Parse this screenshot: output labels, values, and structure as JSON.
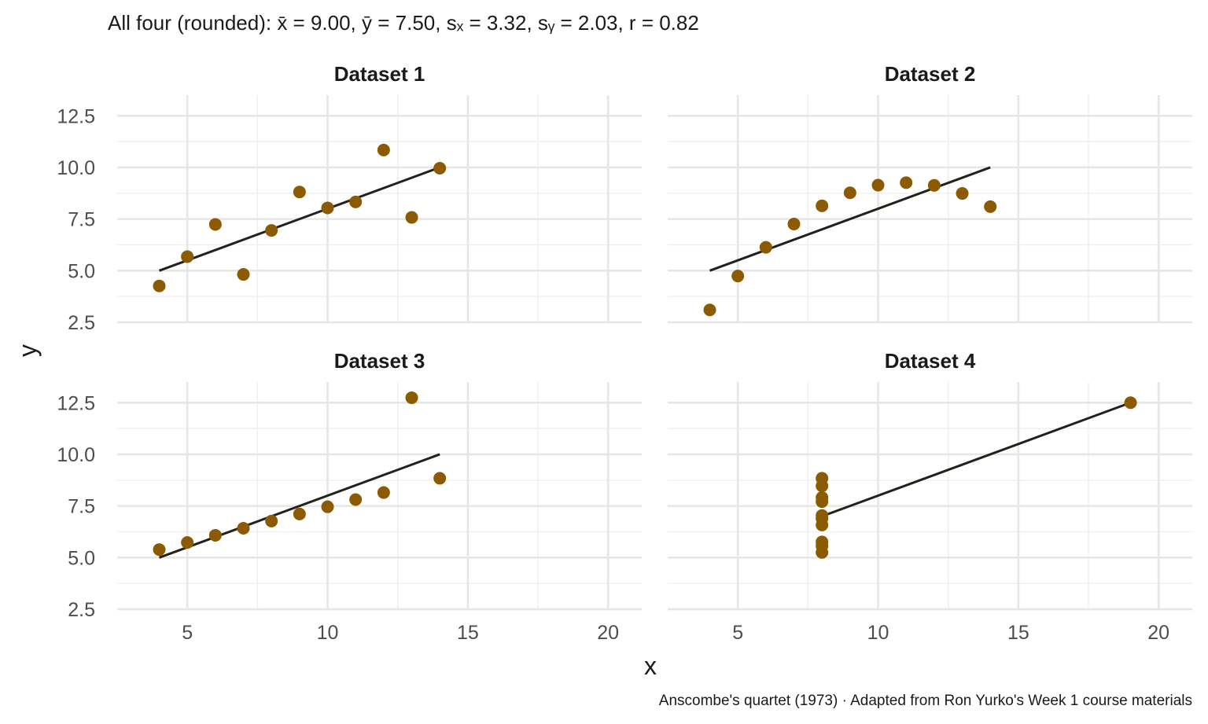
{
  "chart_data": {
    "type": "scatter",
    "subtitle": "All four (rounded): x̄ = 9.00, ȳ = 7.50, sₓ = 3.32, sᵧ = 2.03, r = 0.82",
    "xlabel": "x",
    "ylabel": "y",
    "caption": "Anscombe's quartet (1973) · Adapted from Ron Yurko's Week 1 course materials",
    "xlim": [
      2.5,
      21.2
    ],
    "ylim": [
      2.5,
      13.5
    ],
    "x_ticks": [
      5,
      10,
      15,
      20
    ],
    "y_ticks": [
      2.5,
      5.0,
      7.5,
      10.0,
      12.5
    ],
    "x_tick_labels": [
      "5",
      "10",
      "15",
      "20"
    ],
    "y_tick_labels": [
      "2.5",
      "5.0",
      "7.5",
      "10.0",
      "12.5"
    ],
    "grid": true,
    "point_color": "#8c5a00",
    "line_color": "#22221b",
    "facets": [
      {
        "title": "Dataset 1",
        "x": [
          10,
          8,
          13,
          9,
          11,
          14,
          6,
          4,
          12,
          7,
          5
        ],
        "y": [
          8.04,
          6.95,
          7.58,
          8.81,
          8.33,
          9.96,
          7.24,
          4.26,
          10.84,
          4.82,
          5.68
        ],
        "fit": {
          "x": [
            4,
            14
          ],
          "y": [
            5.0,
            10.0
          ]
        }
      },
      {
        "title": "Dataset 2",
        "x": [
          10,
          8,
          13,
          9,
          11,
          14,
          6,
          4,
          12,
          7,
          5
        ],
        "y": [
          9.14,
          8.14,
          8.74,
          8.77,
          9.26,
          8.1,
          6.13,
          3.1,
          9.13,
          7.26,
          4.74
        ],
        "fit": {
          "x": [
            4,
            14
          ],
          "y": [
            5.0,
            10.0
          ]
        }
      },
      {
        "title": "Dataset 3",
        "x": [
          10,
          8,
          13,
          9,
          11,
          14,
          6,
          4,
          12,
          7,
          5
        ],
        "y": [
          7.46,
          6.77,
          12.74,
          7.11,
          7.81,
          8.84,
          6.08,
          5.39,
          8.15,
          6.42,
          5.73
        ],
        "fit": {
          "x": [
            4,
            14
          ],
          "y": [
            5.0,
            10.0
          ]
        }
      },
      {
        "title": "Dataset 4",
        "x": [
          8,
          8,
          8,
          8,
          8,
          8,
          8,
          19,
          8,
          8,
          8
        ],
        "y": [
          6.58,
          5.76,
          7.71,
          8.84,
          8.47,
          7.04,
          5.25,
          12.5,
          5.56,
          7.91,
          6.89
        ],
        "fit": {
          "x": [
            8,
            19
          ],
          "y": [
            7.0,
            12.5
          ]
        }
      }
    ]
  }
}
